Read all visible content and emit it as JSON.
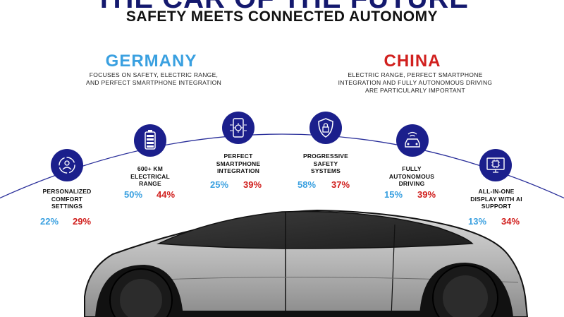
{
  "header": {
    "title": "THE CAR OF THE FUTURE",
    "subtitle": "SAFETY MEETS CONNECTED AUTONOMY"
  },
  "countries": {
    "germany": {
      "name": "GERMANY",
      "description": "FOCUSES ON SAFETY, ELECTRIC RANGE, AND PERFECT SMARTPHONE INTEGRATION",
      "color": "#3aa0e0"
    },
    "china": {
      "name": "CHINA",
      "description": "ELECTRIC RANGE, PERFECT SMARTPHONE INTEGRATION AND FULLY AUTONOMOUS DRIVING ARE PARTICULARLY IMPORTANT",
      "color": "#d1201e"
    }
  },
  "features": [
    {
      "label": "PERSONALIZED COMFORT SETTINGS",
      "germany": "22%",
      "china": "29%",
      "icon": "person-settings-icon"
    },
    {
      "label": "600+ KM ELECTRICAL RANGE",
      "germany": "50%",
      "china": "44%",
      "icon": "battery-icon"
    },
    {
      "label": "PERFECT SMARTPHONE INTEGRATION",
      "germany": "25%",
      "china": "39%",
      "icon": "smartphone-gear-icon"
    },
    {
      "label": "PROGRESSIVE SAFETY SYSTEMS",
      "germany": "58%",
      "china": "37%",
      "icon": "shield-lock-icon"
    },
    {
      "label": "FULLY AUTONOMOUS DRIVING",
      "germany": "15%",
      "china": "39%",
      "icon": "car-wireless-icon"
    },
    {
      "label": "ALL-IN-ONE DISPLAY WITH AI SUPPORT",
      "germany": "13%",
      "china": "34%",
      "icon": "display-chip-icon"
    }
  ],
  "colors": {
    "icon_bg": "#1b1f8c",
    "arc": "#2a2f9a"
  }
}
